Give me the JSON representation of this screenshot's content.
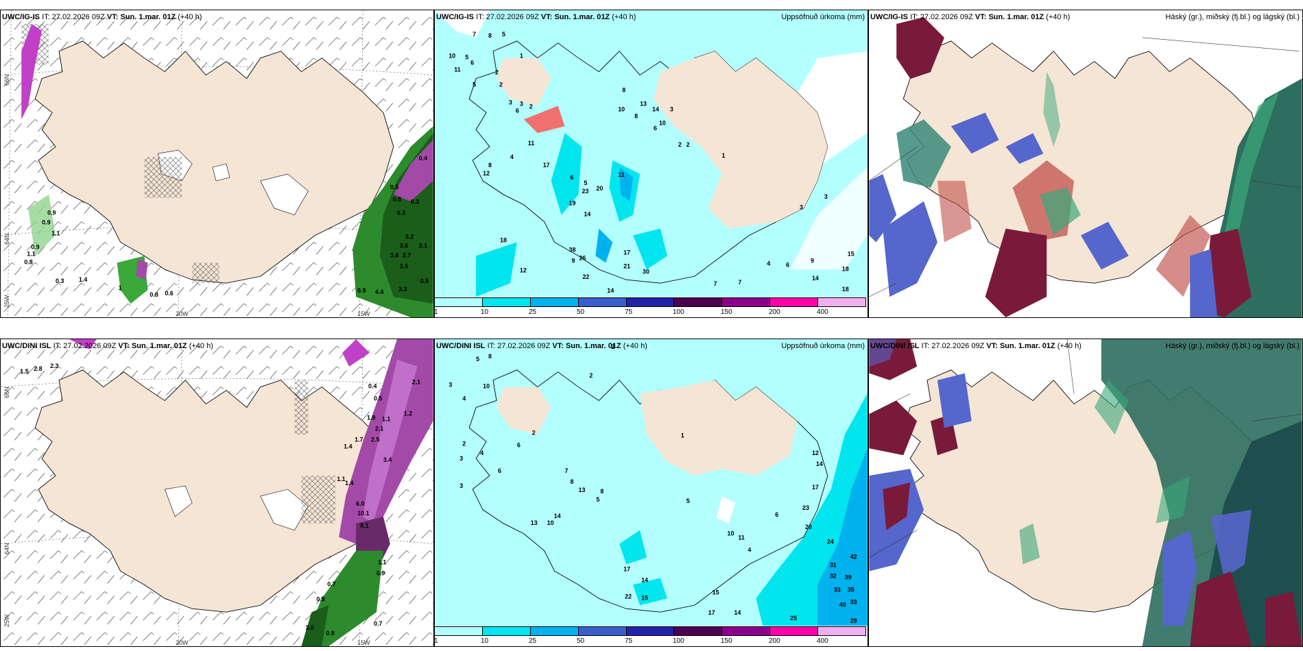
{
  "rows": [
    {
      "model": "UWC/IG-IS",
      "it_label": "IT:",
      "it": "27.02.2026 09Z",
      "vt_label": "VT:",
      "vt": "Sun. 1.mar. 01Z",
      "lead": "(+40 h)",
      "precip_title": "Uppsöfnuð úrkoma (mm)",
      "cloud_title": "Háský (gr.), miðský (fj.bl.) og lágský (bl.)"
    },
    {
      "model": "UWC/DINI ISL",
      "it_label": "IT:",
      "it": "27.02.2026 09Z",
      "vt_label": "VT:",
      "vt": "Sun. 1.mar. 01Z",
      "lead": "(+40 h)",
      "precip_title": "Uppsöfnuð úrkoma (mm)",
      "cloud_title": "Háský (gr.), miðský (fj.bl.) og lágský (bl.)"
    }
  ],
  "axis_labels": {
    "lat_66": "66N",
    "lat_64": "64N",
    "lon_25": "25W",
    "lon_20": "20W",
    "lon_15": "15W"
  },
  "colorbar": {
    "ticks": [
      "1",
      "10",
      "25",
      "50",
      "75",
      "100",
      "150",
      "200",
      "400"
    ],
    "colors": [
      "#b3ffff",
      "#00e5ee",
      "#00b2ee",
      "#3a5fcd",
      "#2222aa",
      "#4b0050",
      "#8b008b",
      "#ff00aa",
      "#f0b0f0"
    ]
  },
  "colors": {
    "land": "#f5e5d5",
    "snow_sea": "#b3ffff",
    "precip_mid": "#00e5ee",
    "green_dark": "#1a5e1a",
    "green_mid": "#3aa83a",
    "magenta": "#a34aa8",
    "high_cloud": "#3a8a7a",
    "mid_cloud": "#5566cc",
    "low_cloud": "#7a1a3a"
  },
  "snow_values_top": [
    "0.4",
    "0.5",
    "0.3",
    "0.5",
    "0.3",
    "3.2",
    "3.6",
    "3.1",
    "3.6",
    "2.7",
    "3.5",
    "4.4",
    "3.3",
    "0.9",
    "0.5",
    "1.1",
    "0.8",
    "0.9",
    "0.9",
    "0.9",
    "1.1",
    "0.3",
    "1.4",
    "0.8",
    "0.6",
    "1"
  ],
  "snow_values_bottom": [
    "1.5",
    "2.8",
    "2.3",
    "2.1",
    "0.4",
    "0.5",
    "1.8",
    "1.1",
    "2.1",
    "2.5",
    "1.7",
    "1.4",
    "3.4",
    "1.1",
    "1.4",
    "6.0",
    "10.1",
    "8.1",
    "1.2",
    "1.1",
    "0.9",
    "0.7",
    "0.8",
    "3.0",
    "0.9",
    "0.7"
  ],
  "precip_values_top": [
    "7",
    "8",
    "5",
    "10",
    "5",
    "6",
    "11",
    "2",
    "5",
    "2",
    "1",
    "3",
    "3",
    "2",
    "6",
    "8",
    "10",
    "13",
    "8",
    "14",
    "10",
    "6",
    "3",
    "2",
    "2",
    "1",
    "17",
    "12",
    "6",
    "5",
    "4",
    "8",
    "11",
    "19",
    "23",
    "20",
    "14",
    "18",
    "11",
    "38",
    "26",
    "12",
    "22",
    "14",
    "9",
    "17",
    "21",
    "30",
    "4",
    "6",
    "9",
    "14",
    "18",
    "15",
    "18",
    "3",
    "3",
    "7",
    "7"
  ],
  "precip_values_bottom": [
    "5",
    "8",
    "3",
    "10",
    "4",
    "2",
    "3",
    "2",
    "4",
    "2",
    "6",
    "3",
    "6",
    "2",
    "7",
    "8",
    "13",
    "8",
    "5",
    "1",
    "5",
    "10",
    "14",
    "13",
    "17",
    "14",
    "22",
    "15",
    "17",
    "18",
    "20",
    "24",
    "31",
    "32",
    "33",
    "35",
    "39",
    "42",
    "40",
    "33",
    "29",
    "25",
    "15",
    "14",
    "12",
    "14",
    "17",
    "23",
    "6",
    "4",
    "10",
    "11"
  ]
}
